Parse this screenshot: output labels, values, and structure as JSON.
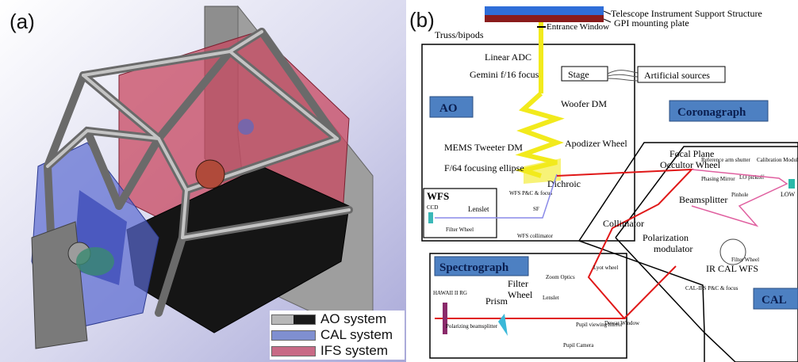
{
  "panel_a": {
    "label": "(a)",
    "legend": [
      {
        "label": "AO system",
        "color": "#1a1a1a",
        "color2": "#b8b8b8"
      },
      {
        "label": "CAL system",
        "color": "#7f8fd0"
      },
      {
        "label": "IFS system",
        "color": "#c86a86"
      }
    ]
  },
  "panel_b": {
    "label": "(b)",
    "header": {
      "tiss": "Telescope Instrument Support Structure",
      "gpi_plate": "GPI mounting plate",
      "entrance_window": "Entrance Window",
      "truss": "Truss/bipods"
    },
    "ao": {
      "title": "AO",
      "linear_adc": "Linear ADC",
      "gemini_focus": "Gemini f/16 focus",
      "stage": "Stage",
      "artificial_sources": "Artificial sources",
      "woofer": "Woofer DM",
      "mems": "MEMS Tweeter DM",
      "ellipse": "F/64 focusing ellipse",
      "apodizer": "Apodizer Wheel",
      "dichroic": "Dichroic"
    },
    "wfs": {
      "title": "WFS",
      "ccd": "CCD",
      "filter_wheel": "Filter Wheel",
      "lenslet": "Lenslet",
      "wfs_pc": "WFS P&C & focus",
      "sf": "SF",
      "collimator": "WFS collimator"
    },
    "coronagraph": {
      "title": "Coronagraph",
      "fpm": "Focal Plane Occultor Wheel",
      "ref_shutter": "Reference arm shutter",
      "cal_module": "Calibration Module",
      "phasing_mirror": "Phasing Mirror",
      "lo_pickoff": "LO pickoff",
      "low": "LOW",
      "pinhole": "Pinhole",
      "beamsplitter": "Beamsplitter",
      "collimator": "Collimator",
      "polarization": "Polarization modulator",
      "filter_wheel": "Filter Wheel",
      "ir_cal_wfs": "IR CAL WFS",
      "cal_ifs": "CAL-IFS P&C & focus",
      "cal": "CAL"
    },
    "spectrograph": {
      "title": "Spectrograph",
      "hawaii": "HAWAII II RG",
      "prism": "Prism",
      "filter_wheel": "Filter Wheel",
      "zoom": "Zoom Optics",
      "lenslet": "Lenslet",
      "lyot": "Lyot wheel",
      "dewar": "Dewar Window",
      "pupil_mirror": "Pupil viewing mirror",
      "pupil_camera": "Pupil Camera",
      "pol_bs": "Polarizing beamsplitter"
    },
    "colors": {
      "ao_beam": "#f2ea1c",
      "science_beam": "#e01818",
      "cal_beam": "#e060a0",
      "wfs_beam": "#8a8ae8",
      "title_box": "#4d80c2"
    }
  }
}
